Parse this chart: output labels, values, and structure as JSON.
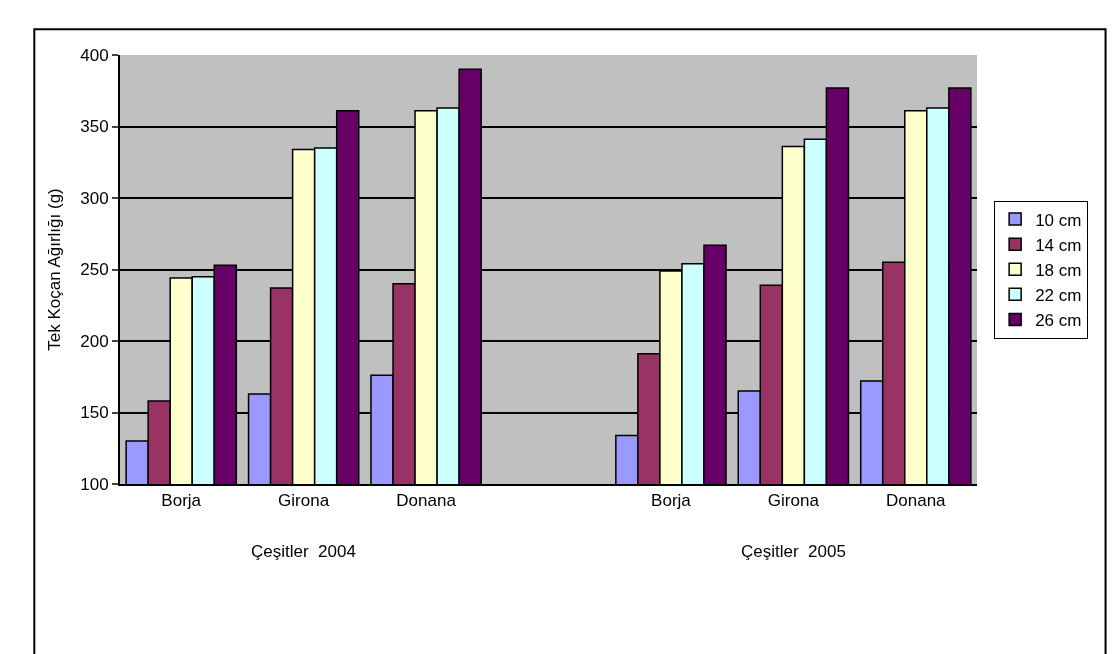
{
  "chart_data": {
    "type": "bar",
    "ylabel": "Tek Koçan Ağırlığı (g)",
    "categories": [
      "Borja",
      "Girona",
      "Donana",
      null,
      "Borja",
      "Girona",
      "Donana"
    ],
    "series": [
      {
        "name": "10 cm",
        "color": "#9999ff",
        "values": [
          130,
          163,
          176,
          null,
          134,
          165,
          172
        ]
      },
      {
        "name": "14 cm",
        "color": "#993366",
        "values": [
          158,
          237,
          240,
          null,
          191,
          239,
          255
        ]
      },
      {
        "name": "18 cm",
        "color": "#ffffcc",
        "values": [
          244,
          334,
          361,
          null,
          249,
          336,
          361
        ]
      },
      {
        "name": "22 cm",
        "color": "#ccffff",
        "values": [
          245,
          335,
          363,
          null,
          254,
          341,
          363
        ]
      },
      {
        "name": "26 cm",
        "color": "#660066",
        "values": [
          253,
          361,
          390,
          null,
          267,
          377,
          377
        ]
      }
    ],
    "ylim": [
      100,
      400
    ],
    "yticks": [
      100,
      150,
      200,
      250,
      300,
      350,
      400
    ],
    "grid": "y",
    "legend": "right",
    "annotations": [
      "Çeşitler  2004",
      "Çeşitler  2005"
    ]
  }
}
